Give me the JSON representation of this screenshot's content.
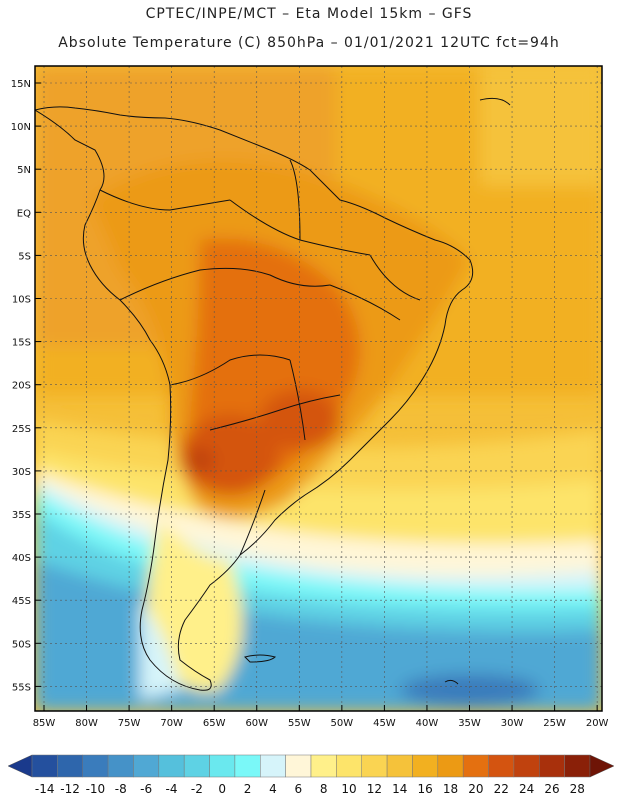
{
  "title": {
    "line1": "CPTEC/INPE/MCT –  Eta Model 15km – GFS",
    "line2": "Absolute Temperature (C) 850hPa – 01/01/2021 12UTC fct=94h"
  },
  "map": {
    "region": "South America",
    "variable": "Absolute Temperature (C) 850hPa",
    "lat_labels": [
      "15N",
      "10N",
      "5N",
      "EQ",
      "5S",
      "10S",
      "15S",
      "20S",
      "25S",
      "30S",
      "35S",
      "40S",
      "45S",
      "50S",
      "55S"
    ],
    "lon_labels": [
      "85W",
      "80W",
      "75W",
      "70W",
      "65W",
      "60W",
      "55W",
      "50W",
      "45W",
      "40W",
      "35W",
      "30W",
      "25W",
      "20W"
    ]
  },
  "colorbar": {
    "ticks": [
      "-14",
      "-12",
      "-10",
      "-8",
      "-6",
      "-4",
      "-2",
      "0",
      "2",
      "4",
      "6",
      "8",
      "10",
      "12",
      "14",
      "16",
      "18",
      "20",
      "22",
      "24",
      "26",
      "28"
    ],
    "colors": [
      "#1a3a8c",
      "#24509e",
      "#2e66ac",
      "#3a7cbc",
      "#4592c8",
      "#50a8d4",
      "#55c0dc",
      "#5ed2e4",
      "#6ae8ee",
      "#7af8f8",
      "#d6f4fa",
      "#fff6d8",
      "#fff08a",
      "#fde46a",
      "#fad452",
      "#f5c23a",
      "#f2b020",
      "#ec9a14",
      "#e47010",
      "#d45410",
      "#c0420e",
      "#a8300c",
      "#8a2008",
      "#6e1406"
    ]
  }
}
